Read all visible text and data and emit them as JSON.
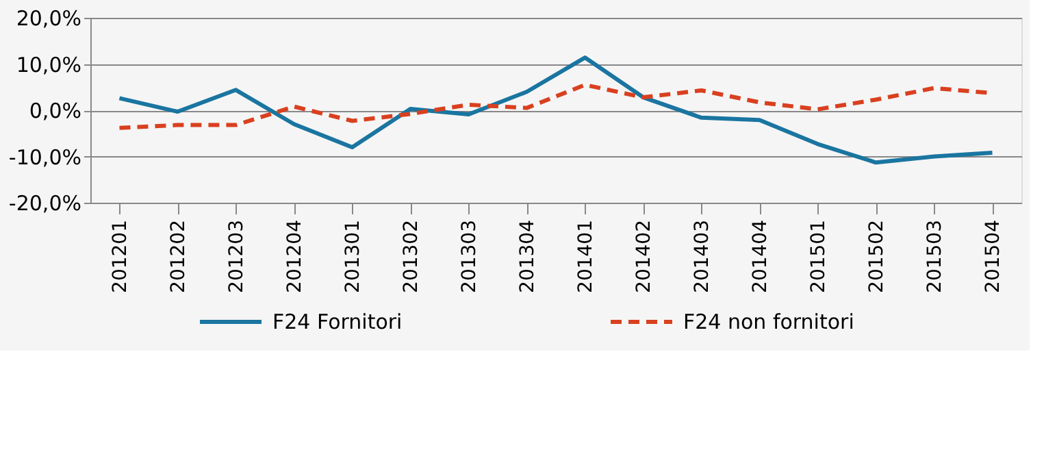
{
  "chart_data": {
    "type": "line",
    "categories": [
      "201201",
      "201202",
      "201203",
      "201204",
      "201301",
      "201302",
      "201303",
      "201304",
      "201401",
      "201402",
      "201403",
      "201404",
      "201501",
      "201502",
      "201503",
      "201504"
    ],
    "series": [
      {
        "name": "F24 Fornitori",
        "color": "#1a75a0",
        "line_style": "solid",
        "values": [
          2.6,
          -0.3,
          4.4,
          -3.0,
          -8.0,
          0.3,
          -0.9,
          4.0,
          11.4,
          2.8,
          -1.6,
          -2.1,
          -7.3,
          -11.3,
          -10.0,
          -9.2
        ]
      },
      {
        "name": "F24 non fornitori",
        "color": "#d9401f",
        "line_style": "dashed",
        "values": [
          -3.8,
          -3.2,
          -3.2,
          0.8,
          -2.3,
          -0.8,
          1.2,
          0.5,
          5.5,
          2.8,
          4.3,
          1.7,
          0.2,
          2.3,
          4.8,
          3.7
        ]
      }
    ],
    "ylim": [
      -20,
      20
    ],
    "yticks": [
      {
        "value": -20,
        "label": "-20,0%"
      },
      {
        "value": -10,
        "label": "-10,0%"
      },
      {
        "value": 0,
        "label": "0,0%"
      },
      {
        "value": 10,
        "label": "10,0%"
      },
      {
        "value": 20,
        "label": "20,0%"
      }
    ],
    "grid": "y",
    "legend": "bottom",
    "marker": "none"
  }
}
